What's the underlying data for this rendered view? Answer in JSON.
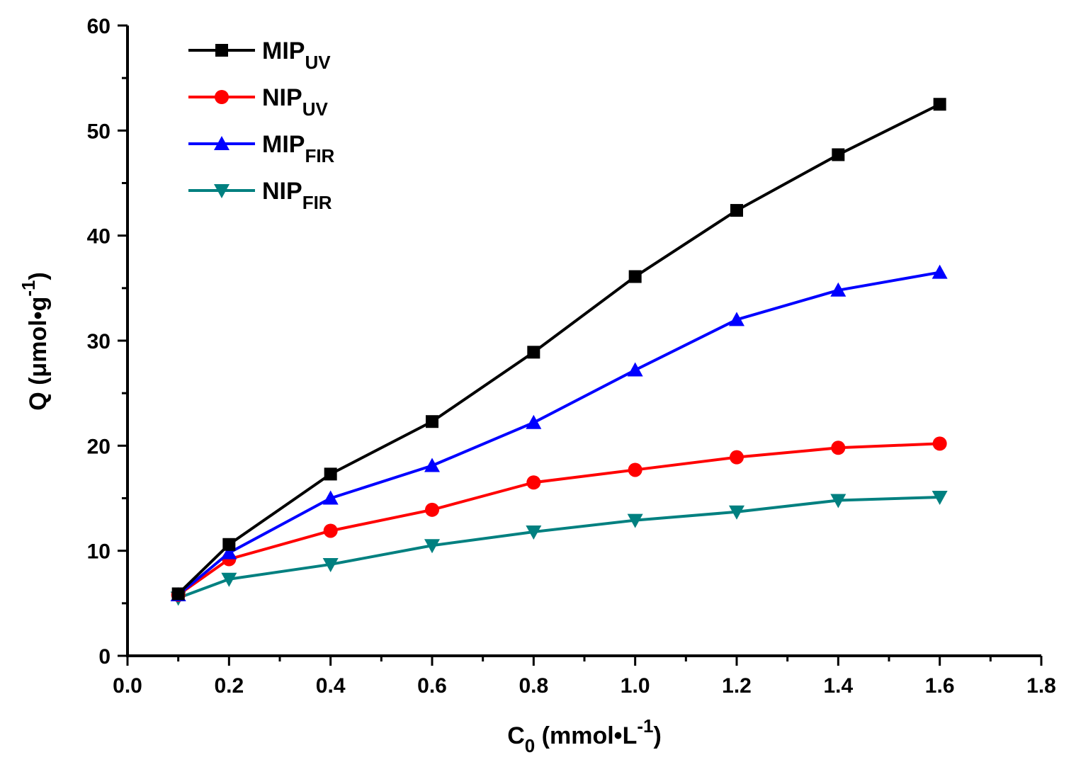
{
  "chart_data": {
    "type": "line",
    "x": [
      0.1,
      0.2,
      0.4,
      0.6,
      0.8,
      1.0,
      1.2,
      1.4,
      1.6
    ],
    "series": [
      {
        "name": "MIP",
        "subscript": "UV",
        "color": "#000000",
        "marker": "square",
        "values": [
          5.9,
          10.6,
          17.3,
          22.3,
          28.9,
          36.1,
          42.4,
          47.7,
          52.5
        ]
      },
      {
        "name": "NIP",
        "subscript": "UV",
        "color": "#ff0000",
        "marker": "circle",
        "values": [
          5.8,
          9.2,
          11.9,
          13.9,
          16.5,
          17.7,
          18.9,
          19.8,
          20.2
        ]
      },
      {
        "name": "MIP",
        "subscript": "FIR",
        "color": "#0000ff",
        "marker": "triangle-up",
        "values": [
          5.8,
          9.8,
          15.0,
          18.1,
          22.2,
          27.2,
          32.0,
          34.8,
          36.5
        ]
      },
      {
        "name": "NIP",
        "subscript": "FIR",
        "color": "#008080",
        "marker": "triangle-down",
        "values": [
          5.5,
          7.3,
          8.7,
          10.5,
          11.8,
          12.9,
          13.7,
          14.8,
          15.1
        ]
      }
    ],
    "xlim": [
      0.0,
      1.8
    ],
    "ylim": [
      0,
      60
    ],
    "x_ticks": [
      "0.0",
      "0.2",
      "0.4",
      "0.6",
      "0.8",
      "1.0",
      "1.2",
      "1.4",
      "1.6",
      "1.8"
    ],
    "y_ticks": [
      "0",
      "10",
      "20",
      "30",
      "40",
      "50",
      "60"
    ],
    "xlabel": {
      "main": "C",
      "sub": "0",
      "unit": " (mmol•L",
      "sup": "-1",
      "close": ")"
    },
    "ylabel": {
      "main": "Q (μmol•g",
      "sup": "-1",
      "close": ")"
    },
    "legend_position": "top-left",
    "grid": false
  }
}
